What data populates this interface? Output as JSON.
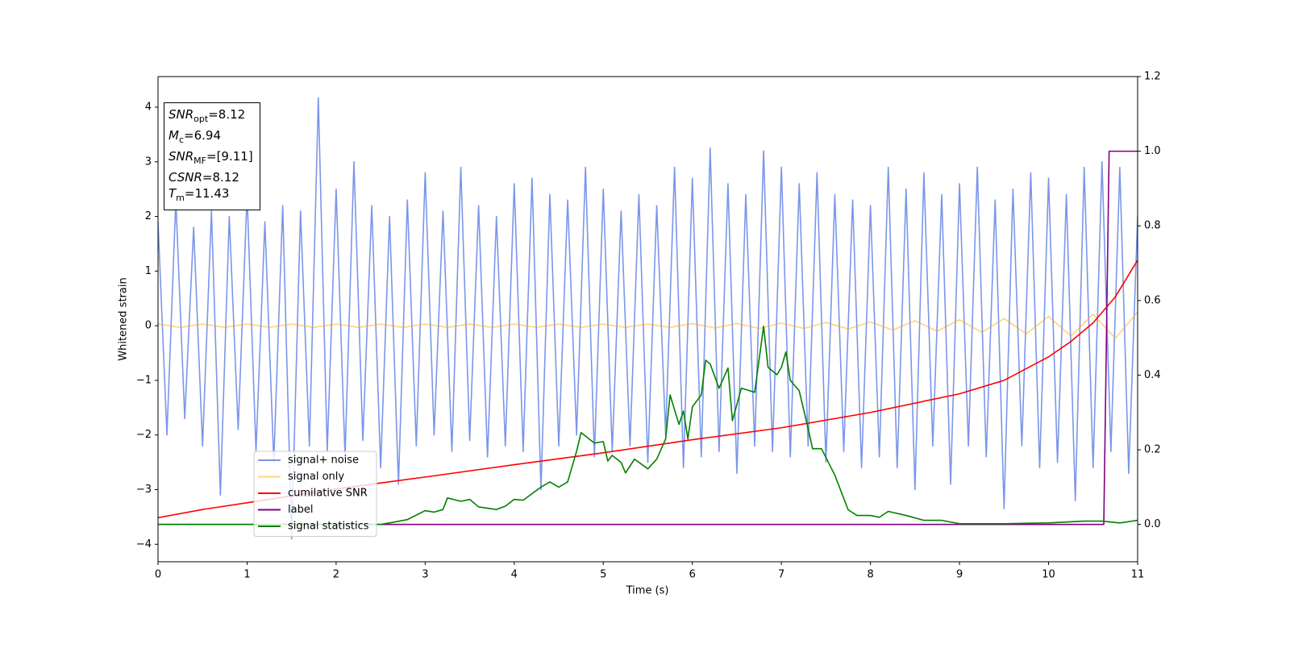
{
  "chart_data": {
    "type": "line",
    "xlabel": "Time (s)",
    "ylabel": "Whitened strain",
    "xlim": [
      0,
      11
    ],
    "xticks": [
      0,
      1,
      2,
      3,
      4,
      5,
      6,
      7,
      8,
      9,
      10,
      11
    ],
    "ylim": [
      -4.32,
      4.56
    ],
    "yticks": [
      {
        "value": -4,
        "label": "−4"
      },
      {
        "value": -3,
        "label": "−3"
      },
      {
        "value": -2,
        "label": "−2"
      },
      {
        "value": -1,
        "label": "−1"
      },
      0,
      1,
      2,
      3,
      4
    ],
    "y2lim": [
      -0.1,
      1.2
    ],
    "y2ticks": [
      {
        "value": 0,
        "label": "0.0"
      },
      {
        "value": 0.2,
        "label": "0.2"
      },
      {
        "value": 0.4,
        "label": "0.4"
      },
      {
        "value": 0.6,
        "label": "0.6"
      },
      {
        "value": 0.8,
        "label": "0.8"
      },
      {
        "value": 1.0,
        "label": "1.0"
      },
      {
        "value": 1.2,
        "label": "1.2"
      }
    ],
    "info": [
      {
        "main": "SNR",
        "sub": "opt",
        "rest": "=8.12"
      },
      {
        "main": "M",
        "sub": "c",
        "rest": "=6.94"
      },
      {
        "main": "SNR",
        "sub": "MF",
        "rest": "=[9.11]"
      },
      {
        "main": "CSNR",
        "sub": null,
        "rest": "=8.12"
      },
      {
        "main": "T",
        "sub": "m",
        "rest": "=11.43"
      }
    ],
    "series": [
      {
        "name": "signal+ noise",
        "color": "#4169e1",
        "alpha": 0.7,
        "x": [
          0,
          0.1,
          0.2,
          0.3,
          0.4,
          0.5,
          0.6,
          0.7,
          0.8,
          0.9,
          1,
          1.1,
          1.2,
          1.3,
          1.4,
          1.5,
          1.6,
          1.7,
          1.8,
          1.9,
          2,
          2.1,
          2.2,
          2.3,
          2.4,
          2.5,
          2.6,
          2.7,
          2.8,
          2.9,
          3,
          3.1,
          3.2,
          3.3,
          3.4,
          3.5,
          3.6,
          3.7,
          3.8,
          3.9,
          4,
          4.1,
          4.2,
          4.3,
          4.4,
          4.5,
          4.6,
          4.7,
          4.8,
          4.9,
          5,
          5.1,
          5.2,
          5.3,
          5.4,
          5.5,
          5.6,
          5.7,
          5.8,
          5.9,
          6,
          6.1,
          6.2,
          6.3,
          6.4,
          6.5,
          6.6,
          6.7,
          6.8,
          6.9,
          7,
          7.1,
          7.2,
          7.3,
          7.4,
          7.5,
          7.6,
          7.7,
          7.8,
          7.9,
          8,
          8.1,
          8.2,
          8.3,
          8.4,
          8.5,
          8.6,
          8.7,
          8.8,
          8.9,
          9,
          9.1,
          9.2,
          9.3,
          9.4,
          9.5,
          9.6,
          9.7,
          9.8,
          9.9,
          10,
          10.1,
          10.2,
          10.3,
          10.4,
          10.5,
          10.6,
          10.7,
          10.8,
          10.9,
          11
        ],
        "values": [
          1.9,
          -2.0,
          2.3,
          -1.7,
          1.8,
          -2.2,
          2.1,
          -3.1,
          2.0,
          -1.9,
          2.4,
          -2.3,
          1.9,
          -2.5,
          2.2,
          -3.9,
          2.1,
          -2.2,
          4.17,
          -2.3,
          2.5,
          -2.4,
          3.0,
          -2.1,
          2.2,
          -2.6,
          2.0,
          -2.9,
          2.3,
          -2.2,
          2.8,
          -2.0,
          2.1,
          -2.3,
          2.9,
          -2.1,
          2.2,
          -2.4,
          2.0,
          -2.2,
          2.6,
          -2.3,
          2.7,
          -3.0,
          2.4,
          -2.2,
          2.3,
          -2.0,
          2.9,
          -2.4,
          2.5,
          -2.3,
          2.1,
          -2.2,
          2.4,
          -2.5,
          2.2,
          -2.0,
          2.9,
          -2.6,
          2.7,
          -2.4,
          3.25,
          -2.3,
          2.6,
          -2.7,
          2.4,
          -2.2,
          3.2,
          -2.3,
          2.9,
          -2.4,
          2.6,
          -2.2,
          2.8,
          -2.5,
          2.4,
          -2.3,
          2.3,
          -2.6,
          2.2,
          -2.4,
          2.9,
          -2.6,
          2.5,
          -3.0,
          2.8,
          -2.2,
          2.4,
          -2.9,
          2.6,
          -2.2,
          2.9,
          -2.4,
          2.3,
          -3.35,
          2.5,
          -2.2,
          2.8,
          -2.6,
          2.7,
          -2.5,
          2.4,
          -3.2,
          2.9,
          -2.6,
          3.0,
          -2.3,
          2.9,
          -2.7,
          2.0
        ]
      },
      {
        "name": "signal only",
        "color": "#ffa500",
        "alpha": 0.5,
        "x": [
          0,
          0.25,
          0.5,
          0.75,
          1,
          1.25,
          1.5,
          1.75,
          2,
          2.25,
          2.5,
          2.75,
          3,
          3.25,
          3.5,
          3.75,
          4,
          4.25,
          4.5,
          4.75,
          5,
          5.25,
          5.5,
          5.75,
          6,
          6.25,
          6.5,
          6.75,
          7,
          7.25,
          7.5,
          7.75,
          8,
          8.25,
          8.5,
          8.75,
          9,
          9.25,
          9.5,
          9.75,
          10,
          10.25,
          10.5,
          10.75,
          11
        ],
        "values": [
          0.03,
          -0.03,
          0.03,
          -0.03,
          0.03,
          -0.03,
          0.03,
          -0.03,
          0.03,
          -0.03,
          0.03,
          -0.03,
          0.03,
          -0.03,
          0.03,
          -0.03,
          0.03,
          -0.03,
          0.03,
          -0.03,
          0.03,
          -0.03,
          0.03,
          -0.03,
          0.04,
          -0.04,
          0.04,
          -0.05,
          0.05,
          -0.05,
          0.06,
          -0.06,
          0.07,
          -0.08,
          0.09,
          -0.1,
          0.11,
          -0.12,
          0.13,
          -0.15,
          0.17,
          -0.19,
          0.21,
          -0.23,
          0.25
        ]
      },
      {
        "name": "cumilative SNR",
        "color": "#ff0000",
        "axis": "y2",
        "x": [
          0,
          0.5,
          1,
          2,
          3,
          4,
          5,
          6,
          7,
          8,
          9,
          9.5,
          10,
          10.25,
          10.5,
          10.75,
          11
        ],
        "values": [
          0.018,
          0.04,
          0.058,
          0.095,
          0.127,
          0.16,
          0.192,
          0.227,
          0.259,
          0.3,
          0.35,
          0.386,
          0.449,
          0.49,
          0.54,
          0.61,
          0.708
        ]
      },
      {
        "name": "label",
        "color": "#800080",
        "axis": "y2",
        "x": [
          0,
          10.62,
          10.68,
          11
        ],
        "values": [
          0,
          0,
          1,
          1
        ]
      },
      {
        "name": "signal statistics",
        "color": "#008000",
        "axis": "y2",
        "x": [
          0,
          2.5,
          2.6,
          2.8,
          3,
          3.1,
          3.2,
          3.25,
          3.4,
          3.5,
          3.6,
          3.8,
          3.9,
          4,
          4.1,
          4.3,
          4.4,
          4.5,
          4.6,
          4.7,
          4.75,
          4.9,
          5,
          5.05,
          5.1,
          5.2,
          5.25,
          5.35,
          5.5,
          5.6,
          5.7,
          5.75,
          5.85,
          5.9,
          5.95,
          6,
          6.1,
          6.15,
          6.2,
          6.3,
          6.4,
          6.45,
          6.55,
          6.7,
          6.8,
          6.85,
          6.95,
          7,
          7.05,
          7.1,
          7.2,
          7.3,
          7.35,
          7.45,
          7.6,
          7.75,
          7.85,
          8,
          8.1,
          8.2,
          8.4,
          8.6,
          8.8,
          9,
          9.5,
          10,
          10.4,
          10.6,
          10.8,
          11
        ],
        "values": [
          0,
          0,
          0.004,
          0.013,
          0.037,
          0.033,
          0.04,
          0.071,
          0.062,
          0.067,
          0.047,
          0.04,
          0.049,
          0.067,
          0.065,
          0.1,
          0.114,
          0.1,
          0.114,
          0.196,
          0.246,
          0.218,
          0.222,
          0.17,
          0.185,
          0.166,
          0.138,
          0.175,
          0.149,
          0.175,
          0.229,
          0.347,
          0.268,
          0.304,
          0.229,
          0.315,
          0.347,
          0.44,
          0.43,
          0.365,
          0.419,
          0.278,
          0.365,
          0.354,
          0.531,
          0.421,
          0.401,
          0.421,
          0.462,
          0.386,
          0.358,
          0.257,
          0.203,
          0.203,
          0.132,
          0.039,
          0.024,
          0.024,
          0.019,
          0.035,
          0.024,
          0.011,
          0.011,
          0.002,
          0.002,
          0.004,
          0.009,
          0.009,
          0.004,
          0.011
        ]
      }
    ]
  }
}
